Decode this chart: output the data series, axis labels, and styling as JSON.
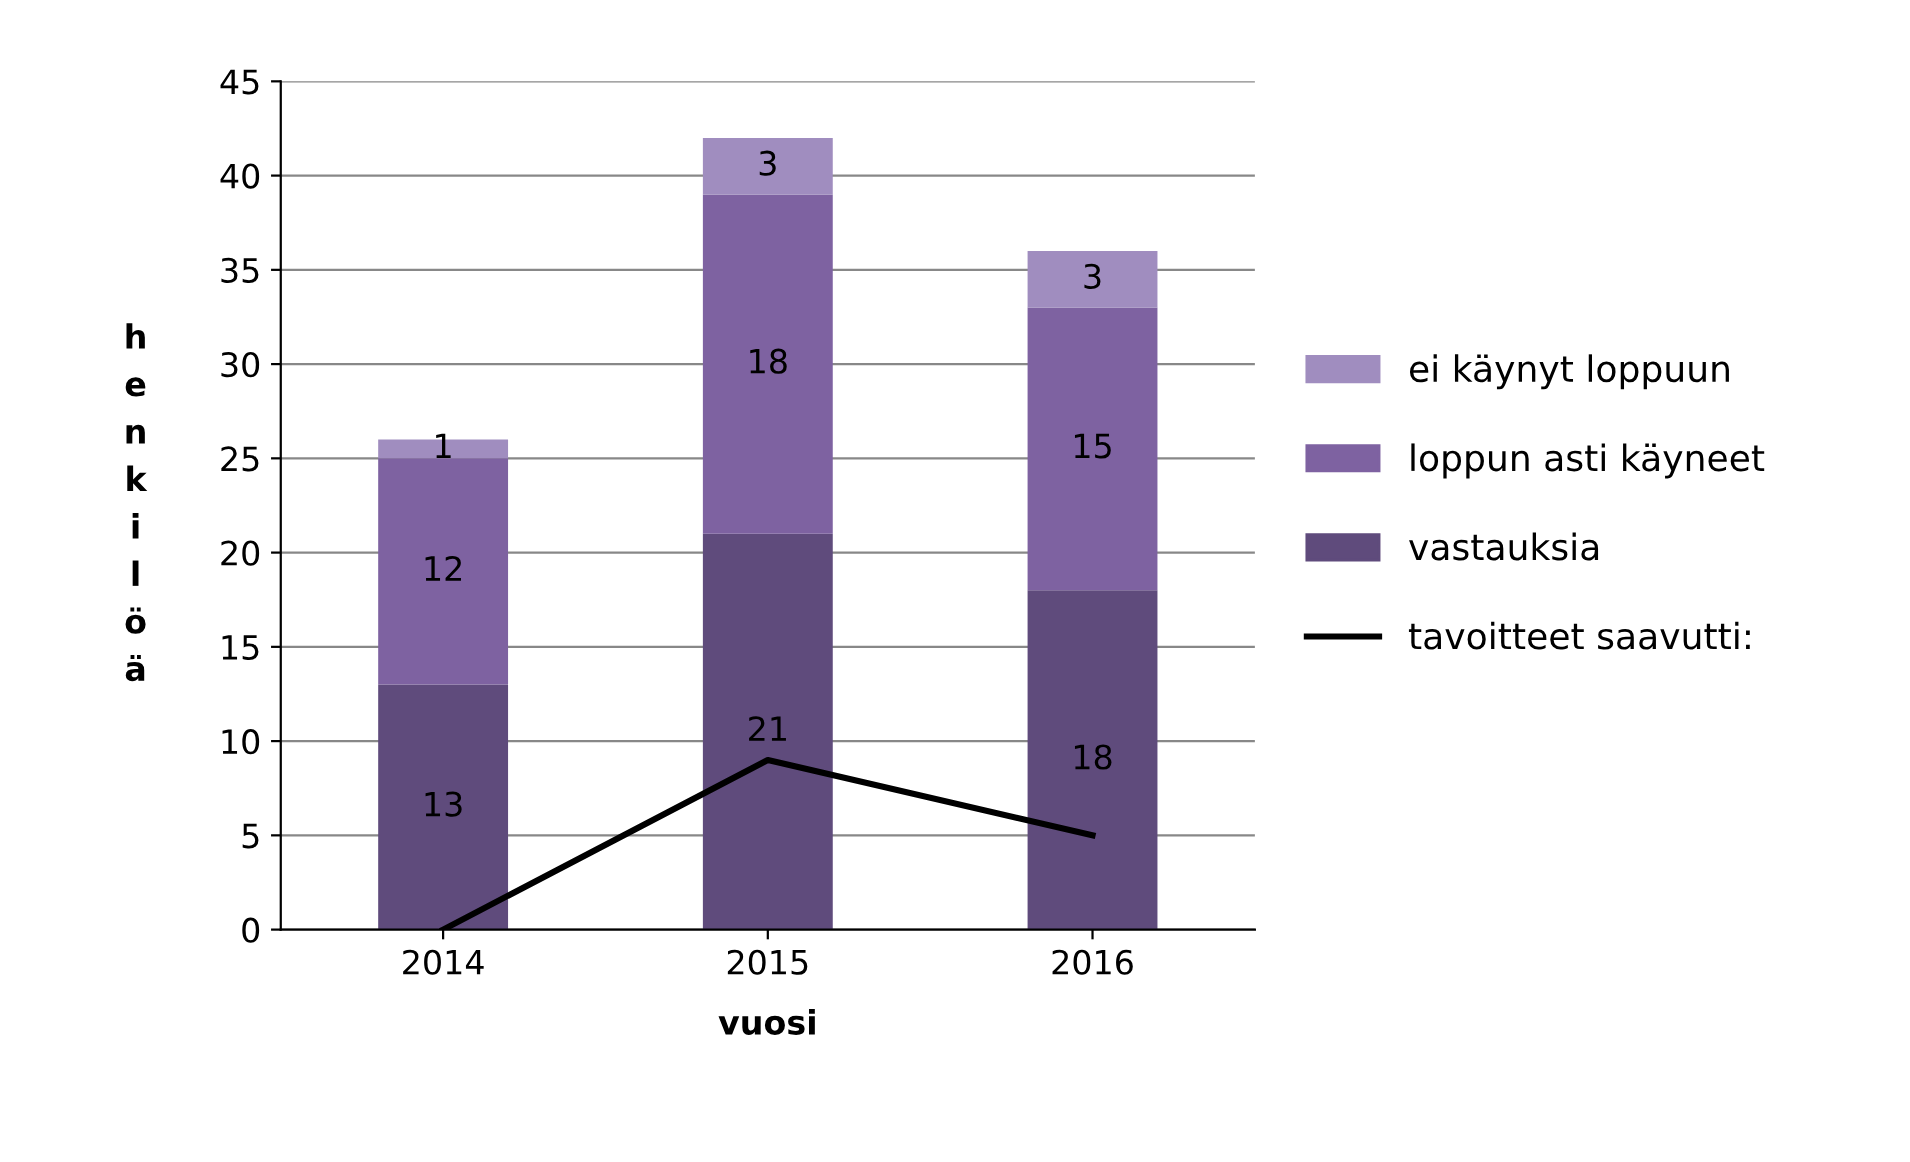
{
  "chart_data": {
    "type": "bar",
    "stacked": true,
    "xlabel": "vuosi",
    "ylabel": "henkilöä",
    "categories": [
      "2014",
      "2015",
      "2016"
    ],
    "series": [
      {
        "name": "vastauksia",
        "color": "#5f4b7c",
        "values": [
          13,
          21,
          18
        ],
        "value_labels": [
          "13",
          "21",
          "18"
        ]
      },
      {
        "name": "loppun asti käyneet",
        "color": "#7e62a1",
        "values": [
          12,
          18,
          15
        ],
        "value_labels": [
          "12",
          "18",
          "15"
        ]
      },
      {
        "name": "ei käynyt loppuun",
        "color": "#a08dbf",
        "values": [
          1,
          3,
          3
        ],
        "value_labels": [
          "1",
          "3",
          "3"
        ]
      },
      {
        "name": "tavoitteet saavutti:",
        "type": "line",
        "color": "#000000",
        "values": [
          0,
          9,
          5
        ]
      }
    ],
    "ylim": [
      0,
      45
    ],
    "yticks": [
      0,
      5,
      10,
      15,
      20,
      25,
      30,
      35,
      40,
      45
    ],
    "grid": "y",
    "legend": "right",
    "marker": "none",
    "line_style": "solid"
  }
}
